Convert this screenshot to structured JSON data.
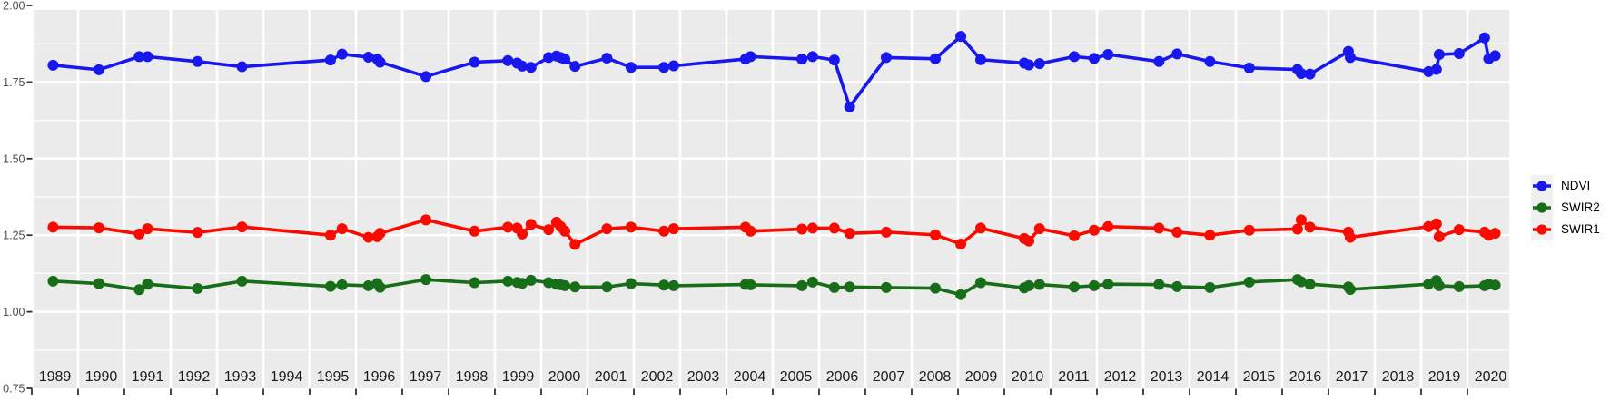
{
  "chart_data": {
    "type": "line",
    "title": "",
    "xlabel": "",
    "ylabel": "",
    "x": [
      1989.46,
      1990.45,
      1991.32,
      1991.5,
      1992.58,
      1993.54,
      1995.45,
      1995.7,
      1996.27,
      1996.46,
      1996.52,
      1997.51,
      1998.56,
      1999.28,
      1999.48,
      1999.59,
      1999.78,
      2000.16,
      2000.33,
      2000.42,
      2000.51,
      2000.73,
      2001.42,
      2001.94,
      2002.65,
      2002.86,
      2004.41,
      2004.52,
      2005.63,
      2005.86,
      2006.33,
      2006.66,
      2007.45,
      2008.51,
      2009.06,
      2009.49,
      2010.43,
      2010.53,
      2010.76,
      2011.51,
      2011.94,
      2012.24,
      2013.34,
      2013.73,
      2014.44,
      2015.29,
      2016.33,
      2016.41,
      2016.6,
      2017.43,
      2017.47,
      2019.16,
      2019.33,
      2019.39,
      2019.82,
      2020.37,
      2020.46,
      2020.6
    ],
    "series": [
      {
        "name": "NDVI",
        "color": "#1717EE",
        "values": [
          1.805,
          1.79,
          1.833,
          1.833,
          1.817,
          1.8,
          1.822,
          1.841,
          1.831,
          1.825,
          1.815,
          1.768,
          1.815,
          1.82,
          1.812,
          1.802,
          1.798,
          1.83,
          1.835,
          1.83,
          1.825,
          1.801,
          1.828,
          1.798,
          1.798,
          1.803,
          1.825,
          1.833,
          1.825,
          1.833,
          1.822,
          1.669,
          1.83,
          1.826,
          1.899,
          1.823,
          1.812,
          1.806,
          1.81,
          1.833,
          1.827,
          1.84,
          1.817,
          1.842,
          1.817,
          1.796,
          1.791,
          1.778,
          1.776,
          1.85,
          1.83,
          1.784,
          1.791,
          1.84,
          1.843,
          1.894,
          1.826,
          1.836
        ]
      },
      {
        "name": "SWIR2",
        "color": "#186E18",
        "values": [
          1.1,
          1.092,
          1.072,
          1.09,
          1.076,
          1.1,
          1.083,
          1.088,
          1.085,
          1.092,
          1.08,
          1.105,
          1.095,
          1.1,
          1.096,
          1.093,
          1.103,
          1.095,
          1.09,
          1.088,
          1.085,
          1.081,
          1.081,
          1.092,
          1.087,
          1.085,
          1.089,
          1.088,
          1.085,
          1.097,
          1.079,
          1.081,
          1.079,
          1.077,
          1.056,
          1.095,
          1.078,
          1.085,
          1.089,
          1.081,
          1.085,
          1.09,
          1.089,
          1.082,
          1.079,
          1.097,
          1.105,
          1.098,
          1.09,
          1.081,
          1.073,
          1.09,
          1.102,
          1.085,
          1.082,
          1.085,
          1.09,
          1.087
        ]
      },
      {
        "name": "SWIR1",
        "color": "#F80B00",
        "values": [
          1.276,
          1.274,
          1.254,
          1.271,
          1.259,
          1.277,
          1.25,
          1.271,
          1.243,
          1.245,
          1.256,
          1.3,
          1.263,
          1.276,
          1.273,
          1.254,
          1.285,
          1.268,
          1.292,
          1.278,
          1.263,
          1.22,
          1.271,
          1.276,
          1.263,
          1.271,
          1.276,
          1.263,
          1.27,
          1.273,
          1.273,
          1.256,
          1.26,
          1.251,
          1.221,
          1.273,
          1.239,
          1.231,
          1.271,
          1.248,
          1.266,
          1.278,
          1.273,
          1.26,
          1.25,
          1.266,
          1.27,
          1.3,
          1.276,
          1.26,
          1.243,
          1.278,
          1.287,
          1.245,
          1.268,
          1.26,
          1.25,
          1.256
        ]
      }
    ],
    "x_axis": {
      "tick_years": [
        "1989",
        "1990",
        "1991",
        "1992",
        "1993",
        "1994",
        "1995",
        "1996",
        "1997",
        "1998",
        "1999",
        "2000",
        "2001",
        "2002",
        "2003",
        "2004",
        "2005",
        "2006",
        "2007",
        "2008",
        "2009",
        "2010",
        "2011",
        "2012",
        "2013",
        "2014",
        "2015",
        "2016",
        "2017",
        "2018",
        "2019",
        "2020"
      ],
      "range": [
        1989.0,
        2021.0
      ]
    },
    "y_axis": {
      "ticks": [
        "2.00",
        "1.75",
        "1.50",
        "1.25",
        "1.00",
        "0.75"
      ],
      "tick_values": [
        2.0,
        1.75,
        1.5,
        1.25,
        1.0,
        0.75
      ],
      "minor_values": [
        1.875,
        1.625,
        1.375,
        1.125,
        0.875
      ],
      "range": [
        0.75,
        2.0
      ]
    },
    "legend": {
      "position": "right",
      "entries": [
        "NDVI",
        "SWIR2",
        "SWIR1"
      ]
    },
    "grid": true
  },
  "colors": {
    "page_bg": "#FFFFFF",
    "panel_bg": "#EBEBEB",
    "grid": "#FFFFFF",
    "axis_text": "#4D4D4D",
    "x_label_text": "#1A1A1A",
    "tick_mark": "#333333",
    "legend_key_bg": "#F0F0F0",
    "legend_text": "#000000"
  }
}
